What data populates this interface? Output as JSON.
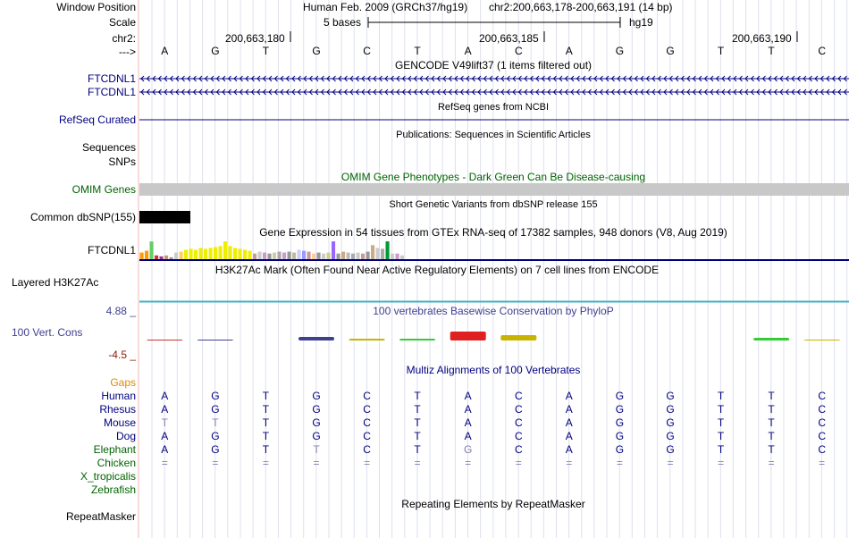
{
  "colors": {
    "track_blue": "#000080",
    "omim_green": "#006400",
    "gray_block": "#c8c8c8",
    "phylop_blue": "#404090",
    "phylop_low": "#8b1a00",
    "gaps_orange": "#e08a00",
    "conservation_teal": "#40b0c0"
  },
  "ruler": {
    "window_position_label": "Window Position",
    "assembly": "Human Feb. 2009 (GRCh37/hg19)",
    "position": "chr2:200,663,178-200,663,191 (14 bp)",
    "scale_label": "Scale",
    "scale_text": "5 bases",
    "scale_db": "hg19",
    "chrom_label": "chr2:",
    "coords": [
      "200,663,180",
      "200,663,185",
      "200,663,190"
    ],
    "arrow_label": "--->",
    "bases": [
      "A",
      "G",
      "T",
      "G",
      "C",
      "T",
      "A",
      "C",
      "A",
      "G",
      "G",
      "T",
      "T",
      "C"
    ]
  },
  "gencode": {
    "title": "GENCODE V49lift37 (1 items filtered out)",
    "labels": [
      "FTCDNL1",
      "FTCDNL1"
    ]
  },
  "refseq": {
    "title": "RefSeq genes from NCBI",
    "label": "RefSeq Curated"
  },
  "publications": {
    "title": "Publications: Sequences in Scientific Articles",
    "label": "Sequences"
  },
  "snps": {
    "label": "SNPs"
  },
  "omim": {
    "title": "OMIM Gene Phenotypes - Dark Green Can Be Disease-causing",
    "label": "OMIM Genes"
  },
  "dbsnp": {
    "title": "Short Genetic Variants from dbSNP release 155",
    "label": "Common dbSNP(155)"
  },
  "gtex": {
    "title": "Gene Expression in 54 tissues from GTEx RNA-seq of 17382 samples, 948 donors (V8, Aug 2019)",
    "label": "FTCDNL1",
    "bars": [
      {
        "v": 0.35,
        "c": "#ff9900"
      },
      {
        "v": 0.45,
        "c": "#ff9900"
      },
      {
        "v": 0.95,
        "c": "#66cc66"
      },
      {
        "v": 0.2,
        "c": "#cc3333"
      },
      {
        "v": 0.15,
        "c": "#993399"
      },
      {
        "v": 0.2,
        "c": "#cc9966"
      },
      {
        "v": 0.1,
        "c": "#999999"
      },
      {
        "v": 0.35,
        "c": "#cccccc"
      },
      {
        "v": 0.4,
        "c": "#ffcc66"
      },
      {
        "v": 0.5,
        "c": "#eeee00"
      },
      {
        "v": 0.55,
        "c": "#eeee00"
      },
      {
        "v": 0.5,
        "c": "#eeee00"
      },
      {
        "v": 0.6,
        "c": "#eeee00"
      },
      {
        "v": 0.55,
        "c": "#eeee00"
      },
      {
        "v": 0.6,
        "c": "#eeee00"
      },
      {
        "v": 0.65,
        "c": "#eeee00"
      },
      {
        "v": 0.7,
        "c": "#eeee00"
      },
      {
        "v": 0.95,
        "c": "#eeee00"
      },
      {
        "v": 0.7,
        "c": "#eeee00"
      },
      {
        "v": 0.6,
        "c": "#eeee00"
      },
      {
        "v": 0.55,
        "c": "#eeee00"
      },
      {
        "v": 0.5,
        "c": "#eeee00"
      },
      {
        "v": 0.45,
        "c": "#eeee00"
      },
      {
        "v": 0.3,
        "c": "#cc9999"
      },
      {
        "v": 0.4,
        "c": "#cccccc"
      },
      {
        "v": 0.35,
        "c": "#cc99cc"
      },
      {
        "v": 0.3,
        "c": "#999999"
      },
      {
        "v": 0.35,
        "c": "#ccccaa"
      },
      {
        "v": 0.4,
        "c": "#aaaaaa"
      },
      {
        "v": 0.35,
        "c": "#cc99cc"
      },
      {
        "v": 0.4,
        "c": "#999999"
      },
      {
        "v": 0.35,
        "c": "#bbbb99"
      },
      {
        "v": 0.5,
        "c": "#ccccff"
      },
      {
        "v": 0.45,
        "c": "#9999ff"
      },
      {
        "v": 0.4,
        "c": "#cc9999"
      },
      {
        "v": 0.3,
        "c": "#ffcc99"
      },
      {
        "v": 0.35,
        "c": "#999999"
      },
      {
        "v": 0.3,
        "c": "#cccccc"
      },
      {
        "v": 0.35,
        "c": "#cccc99"
      },
      {
        "v": 0.95,
        "c": "#9966ff"
      },
      {
        "v": 0.3,
        "c": "#999999"
      },
      {
        "v": 0.4,
        "c": "#ccaa88"
      },
      {
        "v": 0.35,
        "c": "#bbbbbb"
      },
      {
        "v": 0.3,
        "c": "#aaaaaa"
      },
      {
        "v": 0.35,
        "c": "#cccccc"
      },
      {
        "v": 0.3,
        "c": "#cc9999"
      },
      {
        "v": 0.4,
        "c": "#999999"
      },
      {
        "v": 0.75,
        "c": "#ccaa88"
      },
      {
        "v": 0.6,
        "c": "#cccccc"
      },
      {
        "v": 0.55,
        "c": "#aaaaaa"
      },
      {
        "v": 0.95,
        "c": "#009933"
      },
      {
        "v": 0.3,
        "c": "#cccccc"
      },
      {
        "v": 0.3,
        "c": "#cc99cc"
      },
      {
        "v": 0.2,
        "c": "#cccccc"
      }
    ]
  },
  "h3k27ac": {
    "title": "H3K27Ac Mark (Often Found Near Active Regulatory Elements) on 7 cell lines from ENCODE",
    "label": "Layered H3K27Ac"
  },
  "conservation": {
    "max": "4.88 _",
    "label": "100 Vert. Cons",
    "min": "-4.5 _",
    "title": "100 vertebrates Basewise Conservation by PhyloP"
  },
  "multiz": {
    "title": "Multiz Alignments of 100 Vertebrates",
    "gaps_label": "Gaps",
    "species": [
      {
        "name": "Human",
        "bases": "AGTGCTACAGGTTC",
        "faded": []
      },
      {
        "name": "Rhesus",
        "bases": "AGTGCTACAGGTTC",
        "faded": []
      },
      {
        "name": "Mouse",
        "bases": "TTTGCTACAGGTTC",
        "faded": [
          0,
          1
        ]
      },
      {
        "name": "Dog",
        "bases": "AGTGCTACAGGTTC",
        "faded": []
      },
      {
        "name": "Elephant",
        "bases": "AGTTCTGCAGGTTC",
        "faded": [
          3,
          6
        ]
      },
      {
        "name": "Chicken",
        "bases": "==============",
        "faded": []
      },
      {
        "name": "X_tropicalis",
        "bases": "",
        "faded": []
      },
      {
        "name": "Zebrafish",
        "bases": "",
        "faded": []
      }
    ]
  },
  "repeatmasker": {
    "title": "Repeating Elements by RepeatMasker",
    "label": "RepeatMasker"
  }
}
